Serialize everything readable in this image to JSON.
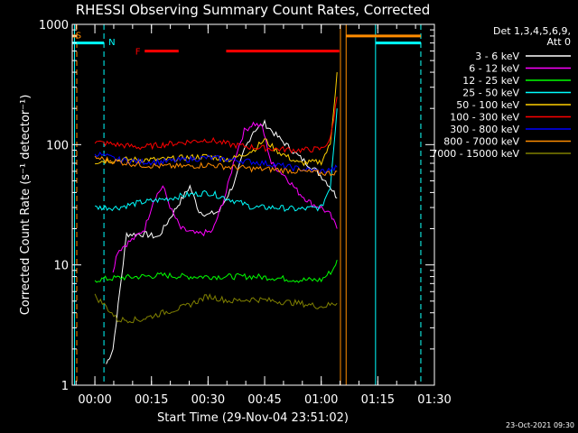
{
  "chart_data": {
    "type": "line",
    "title": "RHESSI Observing Summary Count Rates, Corrected",
    "xlabel": "Start Time (29-Nov-04 23:51:02)",
    "ylabel": "Corrected Count Rate (s⁻¹ detector⁻¹)",
    "y_scale": "log",
    "ylim": [
      1,
      1000
    ],
    "y_ticks": [
      1,
      10,
      100,
      1000
    ],
    "y_tick_labels": [
      "1",
      "10",
      "100",
      "1000"
    ],
    "xlim": [
      -0.1,
      1.5
    ],
    "x_ticks": [
      0,
      0.25,
      0.5,
      0.75,
      1.0,
      1.25,
      1.5
    ],
    "x_tick_labels": [
      "00:00",
      "00:15",
      "00:30",
      "00:45",
      "01:00",
      "01:15",
      "01:30"
    ],
    "x_units": "hours after 30-Nov-04 00:00",
    "grid": false,
    "legend_position": "right",
    "legend_header": [
      "Det 1,3,4,5,6,9,",
      "Att 0"
    ],
    "timestamp": "23-Oct-2021 09:30",
    "background": "#000000",
    "series": [
      {
        "name": "3 - 6 keV",
        "color": "#ffffff",
        "x": [
          0.05,
          0.08,
          0.14,
          0.22,
          0.28,
          0.36,
          0.42,
          0.46,
          0.5,
          0.55,
          0.62,
          0.66,
          0.7,
          0.75,
          0.8,
          0.9,
          0.98,
          1.02,
          1.05,
          1.07
        ],
        "y": [
          1.5,
          2.0,
          18,
          18,
          17,
          30,
          45,
          28,
          26,
          28,
          50,
          90,
          130,
          150,
          120,
          80,
          60,
          50,
          42,
          36
        ]
      },
      {
        "name": "6 - 12 keV",
        "color": "#ff00ff",
        "x": [
          0.08,
          0.1,
          0.14,
          0.18,
          0.22,
          0.26,
          0.3,
          0.34,
          0.38,
          0.45,
          0.52,
          0.58,
          0.62,
          0.66,
          0.7,
          0.74,
          0.78,
          0.84,
          0.9,
          0.96,
          1.0,
          1.04,
          1.07
        ],
        "y": [
          9,
          13,
          15,
          17,
          20,
          35,
          45,
          28,
          20,
          18,
          19,
          40,
          80,
          130,
          150,
          140,
          70,
          55,
          40,
          32,
          30,
          26,
          20
        ]
      },
      {
        "name": "12 - 25 keV",
        "color": "#00ff00",
        "x": [
          0.0,
          0.1,
          0.2,
          0.3,
          0.4,
          0.5,
          0.6,
          0.7,
          0.8,
          0.9,
          1.0,
          1.05,
          1.07
        ],
        "y": [
          7.5,
          7.8,
          8.0,
          8.2,
          8.0,
          8.0,
          8.0,
          8.0,
          7.8,
          7.5,
          7.5,
          9,
          11
        ]
      },
      {
        "name": "25 - 50 keV",
        "color": "#00ffff",
        "x": [
          0.0,
          0.1,
          0.2,
          0.3,
          0.4,
          0.5,
          0.6,
          0.7,
          0.8,
          0.9,
          1.0,
          1.04,
          1.07
        ],
        "y": [
          30,
          30,
          33,
          35,
          38,
          40,
          35,
          30,
          30,
          29,
          30,
          45,
          200
        ]
      },
      {
        "name": "50 - 100 keV",
        "color": "#ffd000",
        "x": [
          0.0,
          0.1,
          0.2,
          0.3,
          0.4,
          0.5,
          0.6,
          0.7,
          0.75,
          0.8,
          0.9,
          1.0,
          1.04,
          1.07
        ],
        "y": [
          72,
          75,
          75,
          75,
          78,
          80,
          75,
          90,
          110,
          90,
          70,
          72,
          100,
          400
        ]
      },
      {
        "name": "100 - 300 keV",
        "color": "#ff0000",
        "x": [
          0.0,
          0.1,
          0.2,
          0.3,
          0.4,
          0.5,
          0.6,
          0.7,
          0.8,
          0.9,
          1.0,
          1.04,
          1.07
        ],
        "y": [
          105,
          100,
          95,
          100,
          105,
          110,
          100,
          95,
          92,
          90,
          92,
          110,
          250
        ]
      },
      {
        "name": "300 - 800 keV",
        "color": "#0000ff",
        "x": [
          0.0,
          0.1,
          0.2,
          0.3,
          0.4,
          0.5,
          0.6,
          0.7,
          0.8,
          0.9,
          1.0,
          1.05,
          1.07
        ],
        "y": [
          85,
          75,
          72,
          72,
          75,
          78,
          75,
          72,
          68,
          63,
          60,
          62,
          65
        ]
      },
      {
        "name": "800 - 7000 keV",
        "color": "#ff8c00",
        "x": [
          0.0,
          0.1,
          0.2,
          0.3,
          0.4,
          0.5,
          0.6,
          0.7,
          0.8,
          0.9,
          1.0,
          1.05,
          1.07
        ],
        "y": [
          78,
          72,
          68,
          66,
          66,
          68,
          65,
          63,
          62,
          60,
          58,
          58,
          60
        ]
      },
      {
        "name": "7000 - 15000 keV",
        "color": "#808000",
        "x": [
          0.0,
          0.05,
          0.1,
          0.2,
          0.3,
          0.4,
          0.5,
          0.6,
          0.7,
          0.8,
          0.9,
          1.0,
          1.07
        ],
        "y": [
          5.5,
          4.5,
          3.5,
          3.5,
          4.0,
          4.5,
          5.5,
          5.0,
          5.2,
          5.0,
          4.8,
          4.5,
          4.8
        ]
      }
    ],
    "annotations": [
      {
        "text": "S",
        "color": "#ff8c00"
      },
      {
        "text": "N",
        "color": "#00ffff"
      },
      {
        "text": "F",
        "color": "#ff0000"
      }
    ],
    "state_bars": {
      "saa": {
        "color": "#ff8c00",
        "intervals": [
          [
            -0.1,
            -0.08
          ],
          [
            1.11,
            1.44
          ]
        ],
        "y": 800
      },
      "night": {
        "color": "#00ffff",
        "intervals": [
          [
            -0.1,
            0.04
          ],
          [
            1.24,
            1.44
          ]
        ],
        "y": 700
      },
      "flare": {
        "color": "#ff0000",
        "intervals": [
          [
            0.22,
            0.37
          ],
          [
            0.58,
            1.08
          ]
        ],
        "y": 600
      }
    },
    "vertical_markers": [
      {
        "x": -0.09,
        "color": "#00ffff",
        "style": "solid"
      },
      {
        "x": -0.08,
        "color": "#ff8c00",
        "style": "dashed"
      },
      {
        "x": 0.04,
        "color": "#00ffff",
        "style": "dashed"
      },
      {
        "x": 1.085,
        "color": "#ff8c00",
        "style": "solid"
      },
      {
        "x": 1.11,
        "color": "#ff8c00",
        "style": "solid"
      },
      {
        "x": 1.24,
        "color": "#00ffff",
        "style": "solid"
      },
      {
        "x": 1.44,
        "color": "#ff8c00",
        "style": "dashed"
      },
      {
        "x": 1.44,
        "color": "#00ffff",
        "style": "dashed"
      }
    ]
  }
}
